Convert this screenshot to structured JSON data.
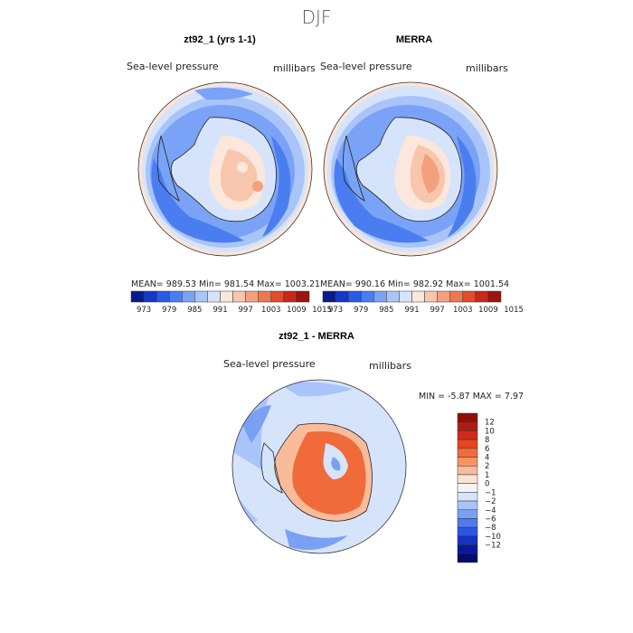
{
  "page_title": "DJF",
  "chart_data": [
    {
      "type": "heatmap",
      "title": "zt92_1 (yrs 1-1)",
      "variable": "Sea-level pressure",
      "units": "millibars",
      "stats": {
        "mean": 989.53,
        "min": 981.54,
        "max": 1003.21
      },
      "stats_text": "MEAN= 989.53   Min= 981.54   Max= 1003.21",
      "colorbar_ticks": [
        "973",
        "979",
        "985",
        "991",
        "997",
        "1003",
        "1009",
        "1015"
      ],
      "colorbar_colors": [
        "#0a1a8c",
        "#1538c8",
        "#2a5ae6",
        "#4a7ef0",
        "#7aa2f6",
        "#a9c4f8",
        "#d6e4fb",
        "#fbe7dc",
        "#f8c6ad",
        "#f4a07e",
        "#ee7753",
        "#e24b2b",
        "#c8281a",
        "#9a1410"
      ]
    },
    {
      "type": "heatmap",
      "title": "MERRA",
      "variable": "Sea-level pressure",
      "units": "millibars",
      "stats": {
        "mean": 990.16,
        "min": 982.92,
        "max": 1001.54
      },
      "stats_text": "MEAN= 990.16   Min= 982.92   Max= 1001.54",
      "colorbar_ticks": [
        "973",
        "979",
        "985",
        "991",
        "997",
        "1003",
        "1009",
        "1015"
      ],
      "colorbar_colors": [
        "#0a1a8c",
        "#1538c8",
        "#2a5ae6",
        "#4a7ef0",
        "#7aa2f6",
        "#a9c4f8",
        "#d6e4fb",
        "#fbe7dc",
        "#f8c6ad",
        "#f4a07e",
        "#ee7753",
        "#e24b2b",
        "#c8281a",
        "#9a1410"
      ]
    },
    {
      "type": "heatmap",
      "title": "zt92_1 - MERRA",
      "variable": "Sea-level pressure",
      "units": "millibars",
      "stats": {
        "min": -5.87,
        "max": 7.97
      },
      "stats_text": "MIN =   -5.87  MAX =    7.97",
      "colorbar_ticks": [
        "12",
        "10",
        "8",
        "6",
        "4",
        "2",
        "1",
        "0",
        "−1",
        "−2",
        "−4",
        "−6",
        "−8",
        "−10",
        "−12"
      ],
      "colorbar_colors": [
        "#8e0f0a",
        "#b01c12",
        "#cf2b18",
        "#e4461f",
        "#f06a3a",
        "#f69466",
        "#f9bc9b",
        "#fde3d4",
        "#f4f4f8",
        "#d7e4fb",
        "#a9c4f8",
        "#7aa0f4",
        "#4f7bee",
        "#2a56e2",
        "#1432c4",
        "#0a1898",
        "#050a6e"
      ]
    }
  ]
}
